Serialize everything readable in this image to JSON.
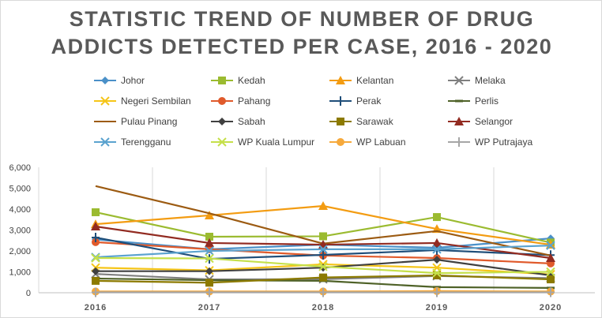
{
  "chart_data": {
    "type": "line",
    "title": "STATISTIC TREND OF NUMBER OF DRUG ADDICTS DETECTED PER CASE, 2016 - 2020",
    "title_lines": [
      "STATISTIC TREND OF NUMBER OF DRUG",
      "ADDICTS DETECTED PER CASE, 2016 - 2020"
    ],
    "x": [
      "2016",
      "2017",
      "2018",
      "2019",
      "2020"
    ],
    "ylim": [
      0,
      6000
    ],
    "yticks": [
      "0",
      "1,000",
      "2,000",
      "3,000",
      "4,000",
      "5,000",
      "6,000"
    ],
    "legend_position": "top",
    "grid": "vertical",
    "series": [
      {
        "name": "Johor",
        "color": "#4a90c8",
        "marker": "diamond",
        "values": [
          2550,
          2080,
          2300,
          2150,
          2600
        ]
      },
      {
        "name": "Kedah",
        "color": "#9bbb30",
        "marker": "square",
        "values": [
          3850,
          2680,
          2700,
          3620,
          2400
        ]
      },
      {
        "name": "Kelantan",
        "color": "#f39c12",
        "marker": "triangle",
        "values": [
          3280,
          3700,
          4150,
          3050,
          2300
        ]
      },
      {
        "name": "Melaka",
        "color": "#7f7f7f",
        "marker": "x",
        "values": [
          900,
          640,
          650,
          800,
          700
        ]
      },
      {
        "name": "Negeri Sembilan",
        "color": "#f5c518",
        "marker": "x",
        "values": [
          1200,
          1070,
          1360,
          1200,
          880
        ]
      },
      {
        "name": "Pahang",
        "color": "#e05a2b",
        "marker": "circle",
        "values": [
          2420,
          2080,
          1780,
          1660,
          1400
        ]
      },
      {
        "name": "Perak",
        "color": "#1f4e79",
        "marker": "plus",
        "values": [
          2640,
          1620,
          1810,
          2040,
          1800
        ]
      },
      {
        "name": "Perlis",
        "color": "#4f6228",
        "marker": "dash",
        "values": [
          680,
          600,
          570,
          270,
          230
        ]
      },
      {
        "name": "Pulau Pinang",
        "color": "#9c5b12",
        "marker": "none",
        "values": [
          5100,
          3800,
          2350,
          2950,
          1780
        ]
      },
      {
        "name": "Sabah",
        "color": "#404040",
        "marker": "diamond",
        "values": [
          1030,
          1030,
          1200,
          1580,
          830
        ]
      },
      {
        "name": "Sarawak",
        "color": "#8c7a00",
        "marker": "square",
        "values": [
          570,
          480,
          730,
          830,
          640
        ]
      },
      {
        "name": "Selangor",
        "color": "#922b21",
        "marker": "triangle",
        "values": [
          3170,
          2380,
          2300,
          2380,
          1660
        ]
      },
      {
        "name": "Terengganu",
        "color": "#5ba3cf",
        "marker": "x",
        "values": [
          1700,
          2000,
          2080,
          2080,
          2260
        ]
      },
      {
        "name": "WP Kuala Lumpur",
        "color": "#c5e04a",
        "marker": "x",
        "values": [
          1660,
          1640,
          1250,
          940,
          1000
        ]
      },
      {
        "name": "WP Labuan",
        "color": "#f6a93b",
        "marker": "circle",
        "values": [
          60,
          60,
          60,
          80,
          60
        ]
      },
      {
        "name": "WP Putrajaya",
        "color": "#a6a6a6",
        "marker": "plus",
        "values": [
          20,
          20,
          20,
          20,
          20
        ]
      }
    ]
  }
}
